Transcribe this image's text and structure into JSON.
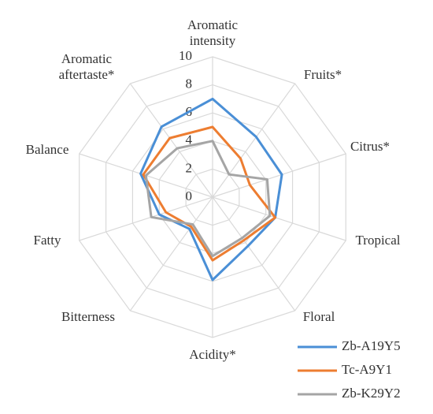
{
  "chart_data": {
    "type": "radar",
    "categories": [
      "Aromatic intensity",
      "Fruits*",
      "Citrus*",
      "Tropical",
      "Floral",
      "Acidity*",
      "Bitterness",
      "Fatty",
      "Balance",
      "Aromatic aftertaste*"
    ],
    "ylim": [
      0,
      10
    ],
    "yticks": [
      0,
      2,
      4,
      6,
      8,
      10
    ],
    "grid": true,
    "legend": "bottom-right",
    "series": [
      {
        "name": "Zb-A19Y5",
        "color": "#4a8fd6",
        "values": [
          7,
          5.3,
          5.2,
          4.7,
          4.3,
          5.9,
          2.8,
          4,
          5.4,
          6.2
        ]
      },
      {
        "name": "Tc-A9Y1",
        "color": "#ed7d31",
        "values": [
          5,
          3.4,
          2.8,
          4.7,
          3.8,
          4.5,
          2.6,
          3.5,
          5.2,
          5.2
        ]
      },
      {
        "name": "Zb-K29Y2",
        "color": "#a5a5a5",
        "values": [
          4,
          2,
          4.1,
          4.3,
          3.6,
          4.2,
          2.4,
          4.6,
          5,
          4.3
        ]
      }
    ]
  }
}
